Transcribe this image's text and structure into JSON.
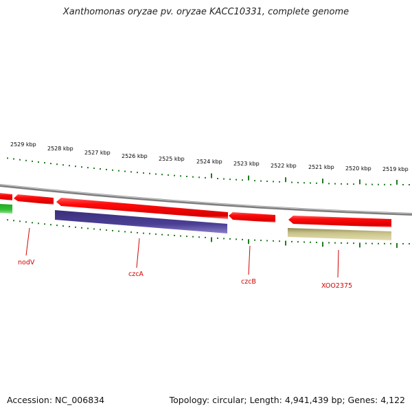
{
  "title": "Xanthomonas oryzae pv. oryzae KACC10331, complete genome",
  "footer": {
    "accession": "Accession: NC_006834",
    "summary": "Topology: circular; Length: 4,941,439 bp; Genes: 4,122"
  },
  "colors": {
    "forward_gene": "#e30000",
    "reverse_gene": "#4b3f8f",
    "other_feature": "#c8c28a",
    "green_feature": "#2cb52c",
    "backbone": "#8c8c8c",
    "ticks": "#1f7a1f",
    "gene_label": "#d00000"
  },
  "scale": {
    "unit": "kbp",
    "ticks": [
      {
        "value": 2529,
        "label": "2529 kbp"
      },
      {
        "value": 2528,
        "label": "2528 kbp"
      },
      {
        "value": 2527,
        "label": "2527 kbp"
      },
      {
        "value": 2526,
        "label": "2526 kbp"
      },
      {
        "value": 2525,
        "label": "2525 kbp"
      },
      {
        "value": 2524,
        "label": "2524 kbp"
      },
      {
        "value": 2523,
        "label": "2523 kbp"
      },
      {
        "value": 2522,
        "label": "2522 kbp"
      },
      {
        "value": 2521,
        "label": "2521 kbp"
      },
      {
        "value": 2520,
        "label": "2520 kbp"
      },
      {
        "value": 2519,
        "label": "2519 kbp"
      }
    ]
  },
  "genes": [
    {
      "name": "nodV"
    },
    {
      "name": "czcA"
    },
    {
      "name": "czcB"
    },
    {
      "name": "XOO2375"
    }
  ]
}
